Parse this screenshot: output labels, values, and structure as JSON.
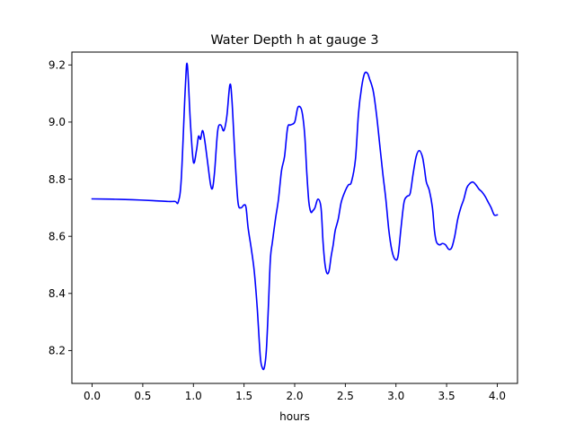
{
  "chart_data": {
    "type": "line",
    "title": "Water Depth h at gauge 3",
    "xlabel": "hours",
    "ylabel": "",
    "xlim": [
      -0.2,
      4.2
    ],
    "ylim": [
      8.085,
      9.245
    ],
    "grid": false,
    "x_ticks": [
      {
        "value": 0.0,
        "label": "0.0"
      },
      {
        "value": 0.5,
        "label": "0.5"
      },
      {
        "value": 1.0,
        "label": "1.0"
      },
      {
        "value": 1.5,
        "label": "1.5"
      },
      {
        "value": 2.0,
        "label": "2.0"
      },
      {
        "value": 2.5,
        "label": "2.5"
      },
      {
        "value": 3.0,
        "label": "3.0"
      },
      {
        "value": 3.5,
        "label": "3.5"
      },
      {
        "value": 4.0,
        "label": "4.0"
      }
    ],
    "y_ticks": [
      {
        "value": 8.2,
        "label": "8.2"
      },
      {
        "value": 8.4,
        "label": "8.4"
      },
      {
        "value": 8.6,
        "label": "8.6"
      },
      {
        "value": 8.8,
        "label": "8.8"
      },
      {
        "value": 9.0,
        "label": "9.0"
      },
      {
        "value": 9.2,
        "label": "9.2"
      }
    ],
    "series": [
      {
        "color": "#0000ff",
        "x": [
          0.0,
          0.2,
          0.4,
          0.6,
          0.75,
          0.82,
          0.85,
          0.88,
          0.92,
          0.94,
          0.97,
          1.0,
          1.03,
          1.05,
          1.07,
          1.09,
          1.11,
          1.14,
          1.17,
          1.19,
          1.21,
          1.24,
          1.27,
          1.3,
          1.33,
          1.36,
          1.38,
          1.41,
          1.44,
          1.47,
          1.5,
          1.52,
          1.54,
          1.57,
          1.6,
          1.63,
          1.66,
          1.68,
          1.7,
          1.72,
          1.74,
          1.76,
          1.78,
          1.81,
          1.84,
          1.87,
          1.9,
          1.93,
          1.96,
          2.0,
          2.03,
          2.06,
          2.08,
          2.1,
          2.12,
          2.14,
          2.16,
          2.18,
          2.2,
          2.23,
          2.26,
          2.28,
          2.3,
          2.32,
          2.34,
          2.36,
          2.38,
          2.4,
          2.43,
          2.46,
          2.5,
          2.53,
          2.56,
          2.6,
          2.63,
          2.66,
          2.69,
          2.72,
          2.74,
          2.76,
          2.78,
          2.81,
          2.84,
          2.87,
          2.9,
          2.93,
          2.96,
          2.99,
          3.02,
          3.05,
          3.08,
          3.11,
          3.14,
          3.17,
          3.2,
          3.23,
          3.26,
          3.28,
          3.3,
          3.33,
          3.36,
          3.38,
          3.4,
          3.43,
          3.46,
          3.49,
          3.52,
          3.55,
          3.58,
          3.61,
          3.64,
          3.67,
          3.7,
          3.73,
          3.76,
          3.79,
          3.82,
          3.85,
          3.88,
          3.91,
          3.94,
          3.97,
          4.0
        ],
        "y": [
          8.731,
          8.73,
          8.728,
          8.725,
          8.722,
          8.722,
          8.72,
          8.8,
          9.12,
          9.2,
          9.0,
          8.86,
          8.9,
          8.95,
          8.94,
          8.97,
          8.94,
          8.86,
          8.78,
          8.77,
          8.83,
          8.97,
          8.99,
          8.97,
          9.02,
          9.13,
          9.08,
          8.88,
          8.72,
          8.7,
          8.71,
          8.7,
          8.63,
          8.56,
          8.48,
          8.35,
          8.18,
          8.14,
          8.14,
          8.2,
          8.35,
          8.52,
          8.58,
          8.66,
          8.73,
          8.83,
          8.88,
          8.98,
          8.99,
          9.0,
          9.05,
          9.05,
          9.02,
          8.95,
          8.82,
          8.72,
          8.685,
          8.69,
          8.7,
          8.73,
          8.7,
          8.58,
          8.5,
          8.47,
          8.48,
          8.53,
          8.57,
          8.62,
          8.66,
          8.72,
          8.76,
          8.78,
          8.79,
          8.87,
          9.03,
          9.12,
          9.17,
          9.17,
          9.15,
          9.13,
          9.1,
          9.02,
          8.92,
          8.82,
          8.73,
          8.62,
          8.55,
          8.52,
          8.53,
          8.63,
          8.72,
          8.74,
          8.75,
          8.82,
          8.88,
          8.9,
          8.88,
          8.84,
          8.79,
          8.76,
          8.7,
          8.62,
          8.58,
          8.57,
          8.575,
          8.57,
          8.555,
          8.56,
          8.6,
          8.66,
          8.7,
          8.73,
          8.77,
          8.785,
          8.79,
          8.78,
          8.765,
          8.755,
          8.74,
          8.72,
          8.7,
          8.675,
          8.675
        ]
      }
    ]
  }
}
